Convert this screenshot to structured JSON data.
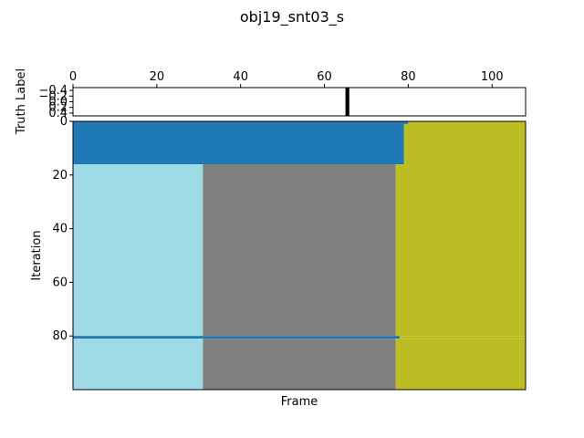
{
  "chart_data": [
    {
      "type": "heatmap",
      "panel": "truth",
      "title": "obj19_snt03_s",
      "ylabel": "Truth Label",
      "xlim": [
        0,
        108
      ],
      "ylim": [
        0.5,
        -0.5
      ],
      "x_ticks": [
        0,
        20,
        40,
        60,
        80,
        100
      ],
      "x_tick_position": "top",
      "y_ticks": [
        -0.4,
        -0.2,
        0.0,
        0.2,
        0.4
      ],
      "y_tick_labels": [
        "−0.4",
        "−0.2",
        "0.0",
        "0.2",
        "0.4"
      ],
      "marker_frame": 65,
      "marker_color": "#000000"
    },
    {
      "type": "heatmap",
      "panel": "iterations",
      "xlabel": "Frame",
      "ylabel": "Iteration",
      "frames": 108,
      "iterations": 100,
      "xlim": [
        0,
        108
      ],
      "ylim": [
        100,
        0
      ],
      "y_ticks": [
        0,
        20,
        40,
        60,
        80
      ],
      "colors": {
        "dark_blue": "#1f77b4",
        "light_blue": "#9edae5",
        "gray": "#7f7f7f",
        "olive": "#bcbd22"
      },
      "segments": [
        {
          "iterations": [
            0,
            0
          ],
          "spans": [
            [
              "dark_blue",
              0,
              80
            ],
            [
              "olive",
              80,
              108
            ]
          ]
        },
        {
          "iterations": [
            1,
            15
          ],
          "spans": [
            [
              "dark_blue",
              0,
              79
            ],
            [
              "olive",
              79,
              108
            ]
          ]
        },
        {
          "iterations": [
            16,
            79
          ],
          "spans": [
            [
              "light_blue",
              0,
              31
            ],
            [
              "gray",
              31,
              77
            ],
            [
              "olive",
              77,
              108
            ]
          ]
        },
        {
          "iterations": [
            80,
            80
          ],
          "spans": [
            [
              "dark_blue",
              0,
              78
            ],
            [
              "olive",
              78,
              108
            ]
          ]
        },
        {
          "iterations": [
            81,
            99
          ],
          "spans": [
            [
              "light_blue",
              0,
              31
            ],
            [
              "gray",
              31,
              77
            ],
            [
              "olive",
              77,
              108
            ]
          ]
        }
      ],
      "notes_visible": "Iteration 0 has a short dark-blue extension to about frame 89; olive/gray boundary fluctuates between frames 75 and 80 across iterations"
    }
  ]
}
